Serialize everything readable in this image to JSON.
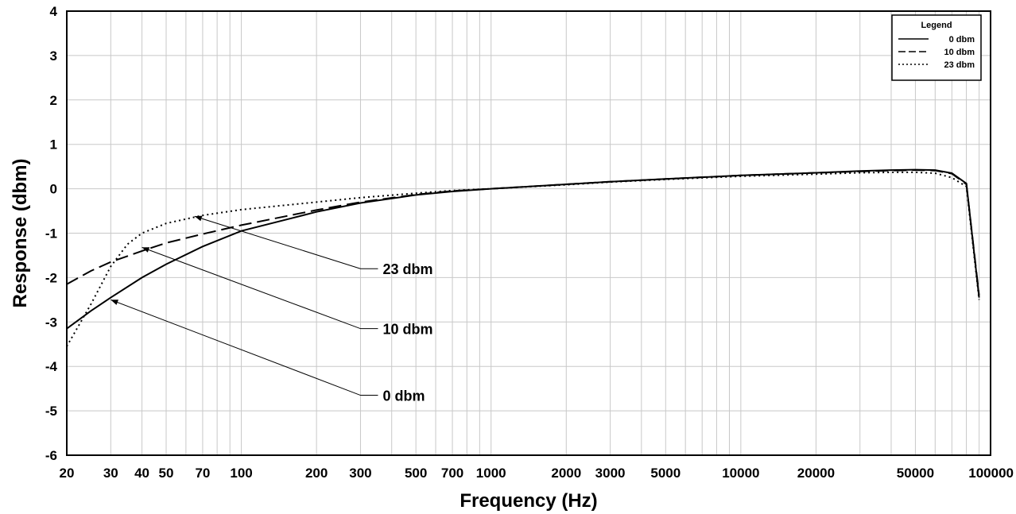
{
  "chart_data": {
    "type": "line",
    "xlabel": "Frequency (Hz)",
    "ylabel": "Response (dbm)",
    "x_scale": "log",
    "xlim": [
      20,
      100000
    ],
    "ylim": [
      -6,
      4
    ],
    "grid": true,
    "x_ticks": [
      20,
      30,
      40,
      50,
      70,
      100,
      200,
      300,
      500,
      700,
      1000,
      2000,
      3000,
      5000,
      10000,
      20000,
      50000,
      100000
    ],
    "x_tick_labels": [
      "20",
      "30",
      "40",
      "50",
      "70",
      "100",
      "200",
      "300",
      "500",
      "700",
      "1000",
      "2000",
      "3000",
      "5000",
      "10000",
      "20000",
      "50000",
      "100000"
    ],
    "y_ticks": [
      -6,
      -5,
      -4,
      -3,
      -2,
      -1,
      0,
      1,
      2,
      3,
      4
    ],
    "y_tick_labels": [
      "-6",
      "-5",
      "-4",
      "-3",
      "-2",
      "-1",
      "0",
      "1",
      "2",
      "3",
      "4"
    ],
    "legend": {
      "title": "Legend",
      "placement": "top-right",
      "entries": [
        "0 dbm",
        "10 dbm",
        "23 dbm"
      ]
    },
    "series": [
      {
        "name": "0 dbm",
        "line_style": "solid",
        "x": [
          20,
          25,
          30,
          40,
          50,
          70,
          100,
          150,
          200,
          300,
          500,
          700,
          1000,
          2000,
          3000,
          5000,
          10000,
          20000,
          30000,
          40000,
          50000,
          60000,
          70000,
          80000,
          90000
        ],
        "y": [
          -3.15,
          -2.75,
          -2.45,
          -2.0,
          -1.7,
          -1.3,
          -0.95,
          -0.7,
          -0.52,
          -0.32,
          -0.14,
          -0.06,
          0.0,
          0.1,
          0.16,
          0.22,
          0.3,
          0.36,
          0.4,
          0.42,
          0.43,
          0.42,
          0.35,
          0.12,
          -2.45
        ]
      },
      {
        "name": "10 dbm",
        "line_style": "dashed",
        "x": [
          20,
          25,
          30,
          40,
          50,
          70,
          100,
          150,
          200,
          300,
          500,
          700,
          1000,
          2000,
          3000,
          5000,
          10000,
          20000,
          30000,
          40000,
          50000,
          60000,
          70000,
          80000,
          90000
        ],
        "y": [
          -2.15,
          -1.85,
          -1.65,
          -1.4,
          -1.22,
          -1.02,
          -0.82,
          -0.62,
          -0.48,
          -0.3,
          -0.13,
          -0.05,
          0.0,
          0.1,
          0.16,
          0.22,
          0.3,
          0.36,
          0.39,
          0.41,
          0.42,
          0.41,
          0.34,
          0.1,
          -2.4
        ]
      },
      {
        "name": "23 dbm",
        "line_style": "dotted",
        "x": [
          20,
          25,
          30,
          35,
          40,
          50,
          70,
          100,
          150,
          200,
          300,
          500,
          700,
          1000,
          2000,
          3000,
          5000,
          10000,
          20000,
          30000,
          40000,
          50000,
          60000,
          70000,
          80000,
          90000
        ],
        "y": [
          -3.55,
          -2.6,
          -1.75,
          -1.25,
          -1.0,
          -0.78,
          -0.6,
          -0.47,
          -0.37,
          -0.3,
          -0.2,
          -0.1,
          -0.04,
          0.0,
          0.09,
          0.15,
          0.21,
          0.28,
          0.33,
          0.36,
          0.37,
          0.37,
          0.35,
          0.25,
          0.05,
          -2.5
        ]
      }
    ],
    "annotations": [
      {
        "text": "23 dbm",
        "series": "23 dbm",
        "point": [
          65,
          -0.62
        ],
        "label_at": [
          300,
          -1.8
        ]
      },
      {
        "text": "10 dbm",
        "series": "10 dbm",
        "point": [
          40,
          -1.32
        ],
        "label_at": [
          300,
          -3.15
        ]
      },
      {
        "text": "0 dbm",
        "series": "0 dbm",
        "point": [
          30,
          -2.5
        ],
        "label_at": [
          300,
          -4.65
        ]
      }
    ]
  }
}
